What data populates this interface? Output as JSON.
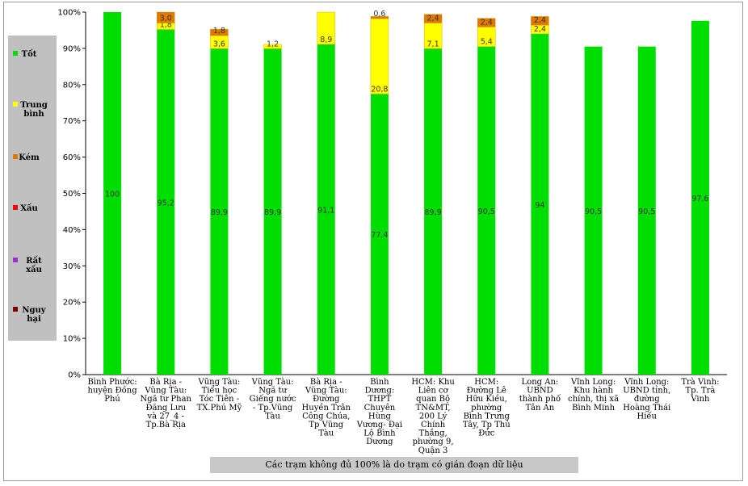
{
  "chart_data": {
    "type": "bar",
    "stacked": true,
    "percent_scale": true,
    "y_ticks": [
      "0%",
      "10%",
      "20%",
      "30%",
      "40%",
      "50%",
      "60%",
      "70%",
      "80%",
      "90%",
      "100%"
    ],
    "ylim": [
      0,
      100
    ],
    "categories": [
      "Bình Phước: huyện Đồng Phú",
      "Bà Rịa - Vũng Tàu: Ngã tư Phan Đăng Lưu và 27_4 - Tp.Bà Rịa",
      "Vũng Tàu: Tiểu học Tóc Tiên - TX.Phú Mỹ",
      "Vũng Tàu: Ngã tư Giếng nước - Tp.Vũng Tàu",
      "Bà Rịa - Vũng Tàu: Đường Huyền Trân Công Chúa, Tp Vũng Tàu",
      "Bình Dương: THPT Chuyên Hùng Vương- Đại Lộ Bình Dương",
      "HCM: Khu Liên cơ quan Bộ TN&MT, 200 Lý Chính Thắng, phường 9, Quận 3",
      "HCM: Đường Lê Hữu Kiều, phường Bình Trưng Tây, Tp Thủ Đức",
      "Long An: UBND thành phố Tân An",
      "Vĩnh Long: Khu hành chính, thị xã Bình Minh",
      "Vĩnh Long: UBND tỉnh, đường Hoàng Thái Hiếu",
      "Trà Vinh: Tp. Trà Vinh"
    ],
    "category_lines": [
      [
        "Bình Phước:",
        "huyện Đồng",
        "Phú"
      ],
      [
        "Bà Rịa -",
        "Vũng Tàu:",
        "Ngã tư Phan",
        "Đăng Lưu",
        "và 27_4 -",
        "Tp.Bà Rịa"
      ],
      [
        "Vũng Tàu:",
        "Tiểu học",
        "Tóc Tiên -",
        "TX.Phú Mỹ"
      ],
      [
        "Vũng Tàu:",
        "Ngã tư",
        "Giếng nước",
        "- Tp.Vũng",
        "Tàu"
      ],
      [
        "Bà Rịa -",
        "Vũng Tàu:",
        "Đường",
        "Huyền Trân",
        "Công Chúa,",
        "Tp Vũng",
        "Tàu"
      ],
      [
        "Bình",
        "Dương:",
        "THPT",
        "Chuyên",
        "Hùng",
        "Vương- Đại",
        "Lộ Bình",
        "Dương"
      ],
      [
        "HCM: Khu",
        "Liên cơ",
        "quan Bộ",
        "TN&MT,",
        "200 Lý",
        "Chính",
        "Thắng,",
        "phường 9,",
        "Quận 3"
      ],
      [
        "HCM:",
        "Đường Lê",
        "Hữu Kiều,",
        "phường",
        "Bình Trưng",
        "Tây, Tp Thủ",
        "Đức"
      ],
      [
        "Long An:",
        "UBND",
        "thành phố",
        "Tân An"
      ],
      [
        "Vĩnh Long:",
        "Khu hành",
        "chính, thị xã",
        "Bình Minh"
      ],
      [
        "Vĩnh Long:",
        "UBND tỉnh,",
        "đường",
        "Hoàng Thái",
        "Hiếu"
      ],
      [
        "Trà Vinh:",
        "Tp. Trà",
        "Vinh"
      ]
    ],
    "series": [
      {
        "name": "Tốt",
        "color": "#00dd00",
        "values": [
          100,
          95.2,
          89.9,
          89.9,
          91.1,
          77.4,
          89.9,
          90.5,
          94,
          90.5,
          90.5,
          97.6
        ],
        "labels": [
          "100",
          "95,2",
          "89,9",
          "89,9",
          "91,1",
          "77,4",
          "89,9",
          "90,5",
          "94",
          "90,5",
          "90,5",
          "97,6"
        ]
      },
      {
        "name": "Trung bình",
        "color": "#ffff00",
        "values": [
          0,
          1.8,
          3.6,
          1.2,
          8.9,
          20.8,
          7.1,
          5.4,
          2.4,
          0,
          0,
          0
        ],
        "labels": [
          "",
          "1,8",
          "3,6",
          "1,2",
          "8,9",
          "20,8",
          "7,1",
          "5,4",
          "2,4",
          "",
          "",
          ""
        ]
      },
      {
        "name": "Kém",
        "color": "#e07800",
        "values": [
          0,
          3.0,
          1.8,
          0,
          0,
          0.6,
          2.4,
          2.4,
          2.4,
          0,
          0,
          0
        ],
        "labels": [
          "",
          "3,0",
          "1,8",
          "",
          "",
          "0,6",
          "2,4",
          "2,4",
          "2,4",
          "",
          "",
          ""
        ]
      },
      {
        "name": "Xấu",
        "color": "#ff0000",
        "values": [
          0,
          0,
          0,
          0,
          0,
          0,
          0,
          0,
          0,
          0,
          0,
          0
        ],
        "labels": []
      },
      {
        "name": "Rất xấu",
        "color": "#9933cc",
        "values": [
          0,
          0,
          0,
          0,
          0,
          0,
          0,
          0,
          0,
          0,
          0,
          0
        ],
        "labels": []
      },
      {
        "name": "Nguy hại",
        "color": "#7a0000",
        "values": [
          0,
          0,
          0,
          0,
          0,
          0,
          0,
          0,
          0,
          0,
          0,
          0
        ],
        "labels": []
      }
    ],
    "legend_lines": [
      [
        "Tốt"
      ],
      [
        "Trung",
        "bình"
      ],
      [
        "Kém"
      ],
      [
        "Xấu"
      ],
      [
        "Rất",
        "xấu"
      ],
      [
        "Nguy",
        "hại"
      ]
    ],
    "legend_position": "left",
    "grid": false
  },
  "note": "Các trạm không đủ 100% là do trạm có gián đoạn dữ liệu"
}
